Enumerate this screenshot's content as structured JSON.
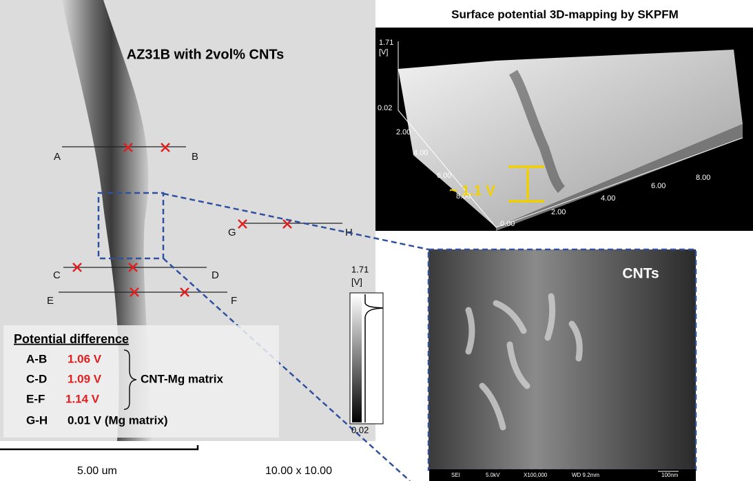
{
  "left_panel": {
    "title": "AZ31B with 2vol% CNTs",
    "line_labels": [
      "A",
      "B",
      "C",
      "D",
      "E",
      "F",
      "G",
      "H"
    ],
    "colorbar": {
      "max": "1.71",
      "unit": "[V]",
      "min": "0.02"
    },
    "scale_bar": "5.00 um",
    "scan_size": "10.00 x 10.00"
  },
  "potential_difference": {
    "title": "Potential difference",
    "rows": [
      {
        "pair": "A-B",
        "value": "1.06 V"
      },
      {
        "pair": "C-D",
        "value": "1.09 V"
      },
      {
        "pair": "E-F",
        "value": "1.14 V"
      },
      {
        "pair": "G-H",
        "value": "0.01 V (Mg matrix)"
      }
    ],
    "group_label": "CNT-Mg matrix"
  },
  "map3d": {
    "title": "Surface potential 3D-mapping by SKPFM",
    "z_top": "1.71",
    "z_unit": "[V]",
    "z_bottom": "0.02",
    "y_ticks": [
      "2.00",
      "4.00",
      "6.00",
      "8.00"
    ],
    "x_ticks": [
      "0.00",
      "2.00",
      "4.00",
      "6.00",
      "8.00"
    ],
    "annotation": "~ 1.1 V"
  },
  "sem": {
    "label": "CNTs",
    "footer": [
      "SEI",
      "5.0kV",
      "X100,000",
      "WD 9.2mm",
      "100nm"
    ]
  }
}
